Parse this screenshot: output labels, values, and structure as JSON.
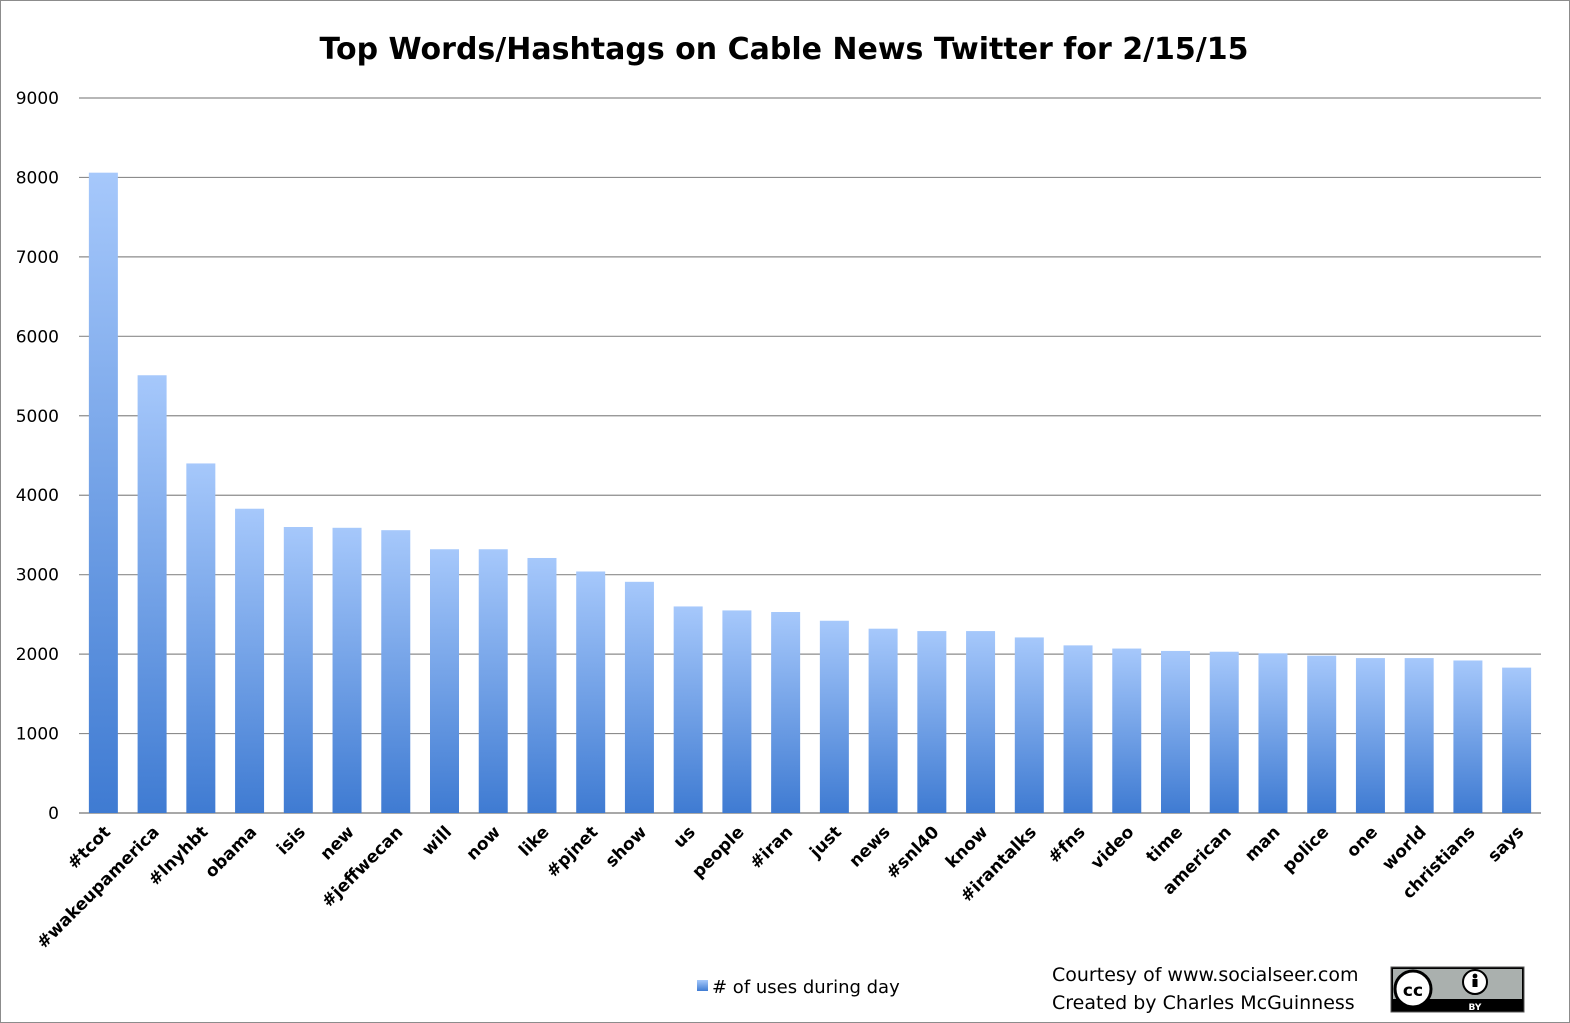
{
  "chart_data": {
    "type": "bar",
    "title": "Top Words/Hashtags on Cable News Twitter for 2/15/15",
    "xlabel": "",
    "ylabel": "",
    "ylim": [
      0,
      9000
    ],
    "yticks": [
      0,
      1000,
      2000,
      3000,
      4000,
      5000,
      6000,
      7000,
      8000,
      9000
    ],
    "grid": true,
    "legend_position": "bottom",
    "categories": [
      "#tcot",
      "#wakeupamerica",
      "#lnyhbt",
      "obama",
      "isis",
      "new",
      "#jeffwecan",
      "will",
      "now",
      "like",
      "#pjnet",
      "show",
      "us",
      "people",
      "#iran",
      "just",
      "news",
      "#snl40",
      "know",
      "#irantalks",
      "#fns",
      "video",
      "time",
      "american",
      "man",
      "police",
      "one",
      "world",
      "christians",
      "says"
    ],
    "series": [
      {
        "name": "# of uses during day",
        "color": "#5b8fe0",
        "values": [
          8060,
          5510,
          4400,
          3830,
          3600,
          3590,
          3560,
          3320,
          3320,
          3210,
          3040,
          2910,
          2600,
          2550,
          2530,
          2420,
          2320,
          2290,
          2290,
          2210,
          2110,
          2070,
          2040,
          2030,
          2010,
          1980,
          1950,
          1950,
          1920,
          1830
        ]
      }
    ]
  },
  "credits": {
    "line1": "Courtesy of www.socialseer.com",
    "line2": "Created by Charles McGuinness"
  },
  "license_badge": {
    "icon": "creative-commons-by-icon",
    "cc_label": "cc",
    "by_label": "BY"
  },
  "colors": {
    "bar_top": "#a6c8fb",
    "bar_bottom": "#3f7bd2",
    "grid": "#8c8c8c"
  }
}
